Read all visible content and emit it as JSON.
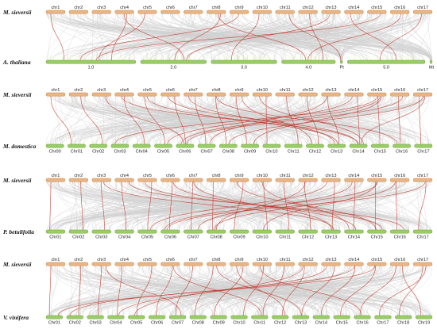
{
  "colors": {
    "top_chrom_fill": "#e8b585",
    "top_chrom_stroke": "#c9894f",
    "bottom_chrom_fill": "#9acd66",
    "bottom_chrom_stroke": "#6aa23a",
    "background_link": "#cfcfcf",
    "highlight_link": "#c0392b"
  },
  "panels": [
    {
      "top_species": "M. sieversii",
      "bottom_species": "A. thaliana",
      "top_chroms": [
        "chr1",
        "chr2",
        "chr3",
        "chr4",
        "chr5",
        "chr6",
        "chr7",
        "chr8",
        "chr9",
        "chr10",
        "chr11",
        "chr12",
        "chr13",
        "chr14",
        "chr15",
        "chr16",
        "chr17"
      ],
      "bottom_chroms": [
        "1.0",
        "2.0",
        "3.0",
        "4.0",
        "Pt",
        "5.0",
        "Mt"
      ],
      "red_links": [
        [
          0,
          0
        ],
        [
          3,
          0
        ],
        [
          3,
          1
        ],
        [
          4,
          0
        ],
        [
          7,
          1
        ],
        [
          7,
          3
        ],
        [
          8,
          0
        ],
        [
          9,
          2
        ],
        [
          10,
          4
        ],
        [
          11,
          3
        ],
        [
          12,
          1
        ],
        [
          13,
          5
        ],
        [
          14,
          0
        ],
        [
          15,
          3
        ],
        [
          16,
          5
        ]
      ]
    },
    {
      "top_species": "M. sieversii",
      "bottom_species": "M. domestica",
      "top_chroms": [
        "chr1",
        "chr2",
        "chr3",
        "chr4",
        "chr5",
        "chr6",
        "chr7",
        "chr8",
        "chr9",
        "chr10",
        "chr11",
        "chr12",
        "chr13",
        "chr14",
        "chr15",
        "chr16",
        "chr17"
      ],
      "bottom_chroms": [
        "Chr00",
        "Chr01",
        "Chr02",
        "Chr03",
        "Chr04",
        "Chr05",
        "Chr06",
        "Chr07",
        "Chr08",
        "Chr09",
        "Chr10",
        "Chr11",
        "Chr12",
        "Chr13",
        "Chr14",
        "Chr15",
        "Chr16",
        "Chr17"
      ],
      "red_links": [
        [
          0,
          1
        ],
        [
          1,
          2
        ],
        [
          3,
          4
        ],
        [
          4,
          5
        ],
        [
          5,
          6
        ],
        [
          6,
          7
        ],
        [
          7,
          8
        ],
        [
          8,
          9
        ],
        [
          9,
          10
        ],
        [
          10,
          11
        ],
        [
          11,
          12
        ],
        [
          12,
          13
        ],
        [
          13,
          14
        ],
        [
          14,
          15
        ],
        [
          15,
          16
        ],
        [
          16,
          17
        ],
        [
          14,
          6
        ],
        [
          14,
          3
        ],
        [
          13,
          5
        ],
        [
          12,
          7
        ],
        [
          15,
          6
        ],
        [
          16,
          8
        ],
        [
          5,
          14
        ],
        [
          6,
          13
        ],
        [
          8,
          12
        ],
        [
          7,
          16
        ],
        [
          9,
          14
        ],
        [
          14,
          9
        ],
        [
          16,
          14
        ],
        [
          4,
          13
        ],
        [
          3,
          14
        ],
        [
          2,
          6
        ]
      ]
    },
    {
      "top_species": "M. sieversii",
      "bottom_species": "P. betulifolia",
      "top_chroms": [
        "chr1",
        "chr2",
        "chr3",
        "chr4",
        "chr5",
        "chr6",
        "chr7",
        "chr8",
        "chr9",
        "chr10",
        "chr11",
        "chr12",
        "chr13",
        "chr14",
        "chr15",
        "chr16",
        "chr17"
      ],
      "bottom_chroms": [
        "Chr01",
        "Chr02",
        "Chr03",
        "Chr04",
        "Chr05",
        "Chr06",
        "Chr07",
        "Chr08",
        "Chr09",
        "Chr10",
        "Chr11",
        "Chr12",
        "Chr13",
        "Chr14",
        "Chr15",
        "Chr16",
        "Chr17"
      ],
      "red_links": [
        [
          0,
          0
        ],
        [
          1,
          1
        ],
        [
          2,
          2
        ],
        [
          3,
          3
        ],
        [
          4,
          4
        ],
        [
          5,
          5
        ],
        [
          6,
          6
        ],
        [
          7,
          7
        ],
        [
          8,
          8
        ],
        [
          9,
          9
        ],
        [
          10,
          10
        ],
        [
          11,
          11
        ],
        [
          12,
          12
        ],
        [
          13,
          13
        ],
        [
          14,
          14
        ],
        [
          15,
          15
        ],
        [
          16,
          16
        ],
        [
          14,
          5
        ],
        [
          13,
          6
        ],
        [
          12,
          4
        ],
        [
          5,
          13
        ],
        [
          6,
          12
        ],
        [
          8,
          14
        ],
        [
          15,
          7
        ],
        [
          16,
          5
        ],
        [
          9,
          13
        ],
        [
          4,
          14
        ],
        [
          3,
          15
        ],
        [
          2,
          12
        ],
        [
          14,
          9
        ],
        [
          11,
          7
        ]
      ]
    },
    {
      "top_species": "M. sieversii",
      "bottom_species": "V. vinifera",
      "top_chroms": [
        "chr1",
        "chr2",
        "chr3",
        "chr4",
        "chr5",
        "chr6",
        "chr7",
        "chr8",
        "chr9",
        "chr10",
        "chr11",
        "chr12",
        "chr13",
        "chr14",
        "chr15",
        "chr16",
        "chr17"
      ],
      "bottom_chroms": [
        "Chr01",
        "Chr02",
        "Chr03",
        "Chr04",
        "Chr05",
        "Chr06",
        "Chr07",
        "Chr08",
        "Chr09",
        "Chr10",
        "Chr11",
        "Chr12",
        "Chr13",
        "Chr14",
        "Chr15",
        "Chr16",
        "Chr17",
        "Chr18",
        "Chr19"
      ],
      "red_links": [
        [
          0,
          0
        ],
        [
          1,
          1
        ],
        [
          2,
          2
        ],
        [
          3,
          3
        ],
        [
          4,
          4
        ],
        [
          5,
          5
        ],
        [
          6,
          6
        ],
        [
          7,
          7
        ],
        [
          8,
          8
        ],
        [
          9,
          9
        ],
        [
          10,
          10
        ],
        [
          11,
          11
        ],
        [
          12,
          12
        ],
        [
          13,
          13
        ],
        [
          14,
          14
        ],
        [
          15,
          15
        ],
        [
          16,
          16
        ],
        [
          13,
          1
        ],
        [
          14,
          0
        ],
        [
          12,
          3
        ],
        [
          5,
          10
        ],
        [
          7,
          12
        ],
        [
          9,
          15
        ],
        [
          11,
          4
        ],
        [
          15,
          18
        ],
        [
          16,
          17
        ],
        [
          8,
          11
        ],
        [
          2,
          6
        ]
      ]
    }
  ]
}
